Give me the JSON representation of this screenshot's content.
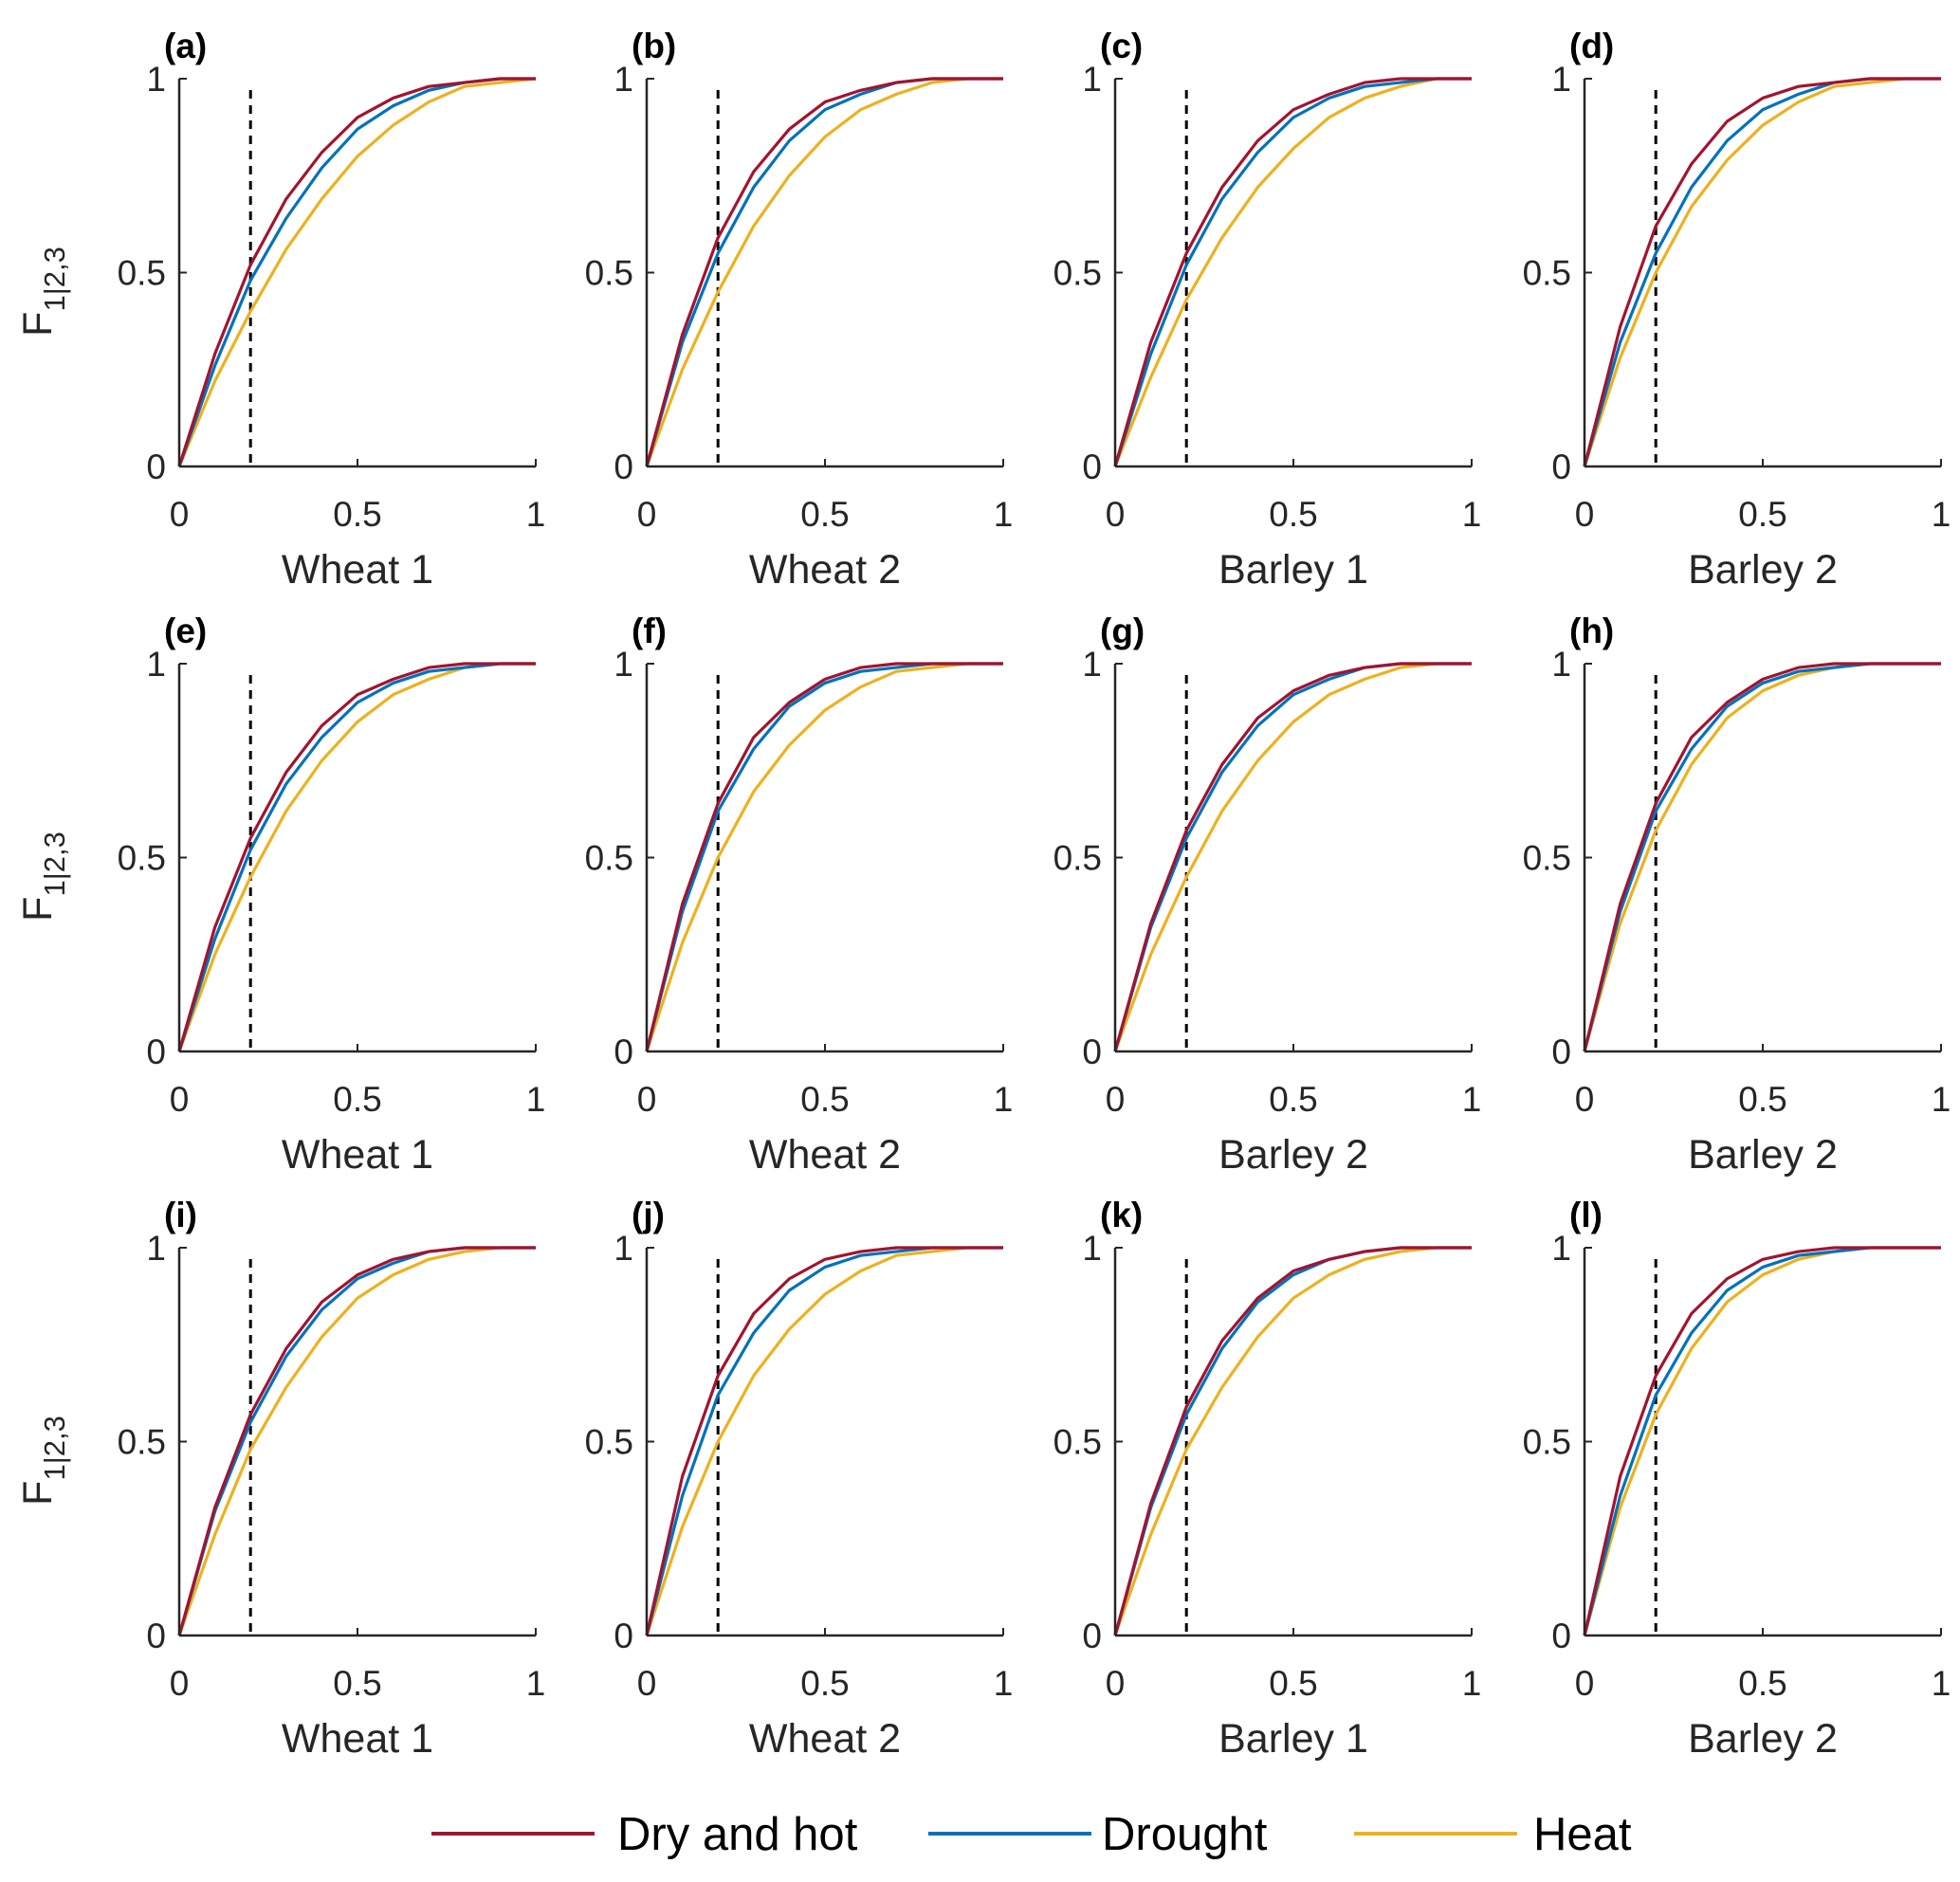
{
  "chart_data": [
    {
      "type": "line",
      "panel_label": "(a)",
      "xlabel": "Wheat 1",
      "ylabel": "F",
      "ylabel_sub": "1|2,3",
      "x": [
        0,
        0.1,
        0.2,
        0.3,
        0.4,
        0.5,
        0.6,
        0.7,
        0.8,
        0.9,
        1
      ],
      "series": [
        {
          "name": "Dry and hot",
          "color": "#a2142f",
          "values": [
            0,
            0.29,
            0.52,
            0.69,
            0.81,
            0.9,
            0.95,
            0.98,
            0.99,
            1,
            1
          ]
        },
        {
          "name": "Drought",
          "color": "#0072bd",
          "values": [
            0,
            0.26,
            0.48,
            0.64,
            0.77,
            0.87,
            0.93,
            0.97,
            0.99,
            1,
            1
          ]
        },
        {
          "name": "Heat",
          "color": "#edb120",
          "values": [
            0,
            0.22,
            0.4,
            0.56,
            0.69,
            0.8,
            0.88,
            0.94,
            0.98,
            0.99,
            1
          ]
        }
      ],
      "xlim": [
        0,
        1
      ],
      "ylim": [
        0,
        1
      ],
      "xticks": [
        0,
        0.5,
        1
      ],
      "yticks": [
        0,
        0.5,
        1
      ],
      "vline": 0.2
    },
    {
      "type": "line",
      "panel_label": "(b)",
      "xlabel": "Wheat 2",
      "x": [
        0,
        0.1,
        0.2,
        0.3,
        0.4,
        0.5,
        0.6,
        0.7,
        0.8,
        0.9,
        1
      ],
      "series": [
        {
          "name": "Dry and hot",
          "color": "#a2142f",
          "values": [
            0,
            0.34,
            0.59,
            0.76,
            0.87,
            0.94,
            0.97,
            0.99,
            1,
            1,
            1
          ]
        },
        {
          "name": "Drought",
          "color": "#0072bd",
          "values": [
            0,
            0.32,
            0.55,
            0.72,
            0.84,
            0.92,
            0.96,
            0.99,
            1,
            1,
            1
          ]
        },
        {
          "name": "Heat",
          "color": "#edb120",
          "values": [
            0,
            0.25,
            0.45,
            0.62,
            0.75,
            0.85,
            0.92,
            0.96,
            0.99,
            1,
            1
          ]
        }
      ],
      "xlim": [
        0,
        1
      ],
      "ylim": [
        0,
        1
      ],
      "xticks": [
        0,
        0.5,
        1
      ],
      "yticks": [
        0,
        0.5,
        1
      ],
      "vline": 0.2
    },
    {
      "type": "line",
      "panel_label": "(c)",
      "xlabel": "Barley 1",
      "x": [
        0,
        0.1,
        0.2,
        0.3,
        0.4,
        0.5,
        0.6,
        0.7,
        0.8,
        0.9,
        1
      ],
      "series": [
        {
          "name": "Dry and hot",
          "color": "#a2142f",
          "values": [
            0,
            0.32,
            0.55,
            0.72,
            0.84,
            0.92,
            0.96,
            0.99,
            1,
            1,
            1
          ]
        },
        {
          "name": "Drought",
          "color": "#0072bd",
          "values": [
            0,
            0.29,
            0.52,
            0.69,
            0.81,
            0.9,
            0.95,
            0.98,
            0.99,
            1,
            1
          ]
        },
        {
          "name": "Heat",
          "color": "#edb120",
          "values": [
            0,
            0.23,
            0.43,
            0.59,
            0.72,
            0.82,
            0.9,
            0.95,
            0.98,
            1,
            1
          ]
        }
      ],
      "xlim": [
        0,
        1
      ],
      "ylim": [
        0,
        1
      ],
      "xticks": [
        0,
        0.5,
        1
      ],
      "yticks": [
        0,
        0.5,
        1
      ],
      "vline": 0.2
    },
    {
      "type": "line",
      "panel_label": "(d)",
      "xlabel": "Barley 2",
      "x": [
        0,
        0.1,
        0.2,
        0.3,
        0.4,
        0.5,
        0.6,
        0.7,
        0.8,
        0.9,
        1
      ],
      "series": [
        {
          "name": "Dry and hot",
          "color": "#a2142f",
          "values": [
            0,
            0.36,
            0.62,
            0.78,
            0.89,
            0.95,
            0.98,
            0.99,
            1,
            1,
            1
          ]
        },
        {
          "name": "Drought",
          "color": "#0072bd",
          "values": [
            0,
            0.32,
            0.55,
            0.72,
            0.84,
            0.92,
            0.96,
            0.99,
            1,
            1,
            1
          ]
        },
        {
          "name": "Heat",
          "color": "#edb120",
          "values": [
            0,
            0.28,
            0.5,
            0.67,
            0.79,
            0.88,
            0.94,
            0.98,
            0.99,
            1,
            1
          ]
        }
      ],
      "xlim": [
        0,
        1
      ],
      "ylim": [
        0,
        1
      ],
      "xticks": [
        0,
        0.5,
        1
      ],
      "yticks": [
        0,
        0.5,
        1
      ],
      "vline": 0.2
    },
    {
      "type": "line",
      "panel_label": "(e)",
      "xlabel": "Wheat 1",
      "ylabel": "F",
      "ylabel_sub": "1|2,3",
      "x": [
        0,
        0.1,
        0.2,
        0.3,
        0.4,
        0.5,
        0.6,
        0.7,
        0.8,
        0.9,
        1
      ],
      "series": [
        {
          "name": "Dry and hot",
          "color": "#a2142f",
          "values": [
            0,
            0.32,
            0.55,
            0.72,
            0.84,
            0.92,
            0.96,
            0.99,
            1,
            1,
            1
          ]
        },
        {
          "name": "Drought",
          "color": "#0072bd",
          "values": [
            0,
            0.29,
            0.52,
            0.69,
            0.81,
            0.9,
            0.95,
            0.98,
            0.99,
            1,
            1
          ]
        },
        {
          "name": "Heat",
          "color": "#edb120",
          "values": [
            0,
            0.25,
            0.45,
            0.62,
            0.75,
            0.85,
            0.92,
            0.96,
            0.99,
            1,
            1
          ]
        }
      ],
      "xlim": [
        0,
        1
      ],
      "ylim": [
        0,
        1
      ],
      "xticks": [
        0,
        0.5,
        1
      ],
      "yticks": [
        0,
        0.5,
        1
      ],
      "vline": 0.2
    },
    {
      "type": "line",
      "panel_label": "(f)",
      "xlabel": "Wheat 2",
      "x": [
        0,
        0.1,
        0.2,
        0.3,
        0.4,
        0.5,
        0.6,
        0.7,
        0.8,
        0.9,
        1
      ],
      "series": [
        {
          "name": "Dry and hot",
          "color": "#a2142f",
          "values": [
            0,
            0.38,
            0.64,
            0.81,
            0.9,
            0.96,
            0.99,
            1,
            1,
            1,
            1
          ]
        },
        {
          "name": "Drought",
          "color": "#0072bd",
          "values": [
            0,
            0.36,
            0.62,
            0.78,
            0.89,
            0.95,
            0.98,
            0.99,
            1,
            1,
            1
          ]
        },
        {
          "name": "Heat",
          "color": "#edb120",
          "values": [
            0,
            0.28,
            0.5,
            0.67,
            0.79,
            0.88,
            0.94,
            0.98,
            0.99,
            1,
            1
          ]
        }
      ],
      "xlim": [
        0,
        1
      ],
      "ylim": [
        0,
        1
      ],
      "xticks": [
        0,
        0.5,
        1
      ],
      "yticks": [
        0,
        0.5,
        1
      ],
      "vline": 0.2
    },
    {
      "type": "line",
      "panel_label": "(g)",
      "xlabel": "Barley 2",
      "x": [
        0,
        0.1,
        0.2,
        0.3,
        0.4,
        0.5,
        0.6,
        0.7,
        0.8,
        0.9,
        1
      ],
      "series": [
        {
          "name": "Dry and hot",
          "color": "#a2142f",
          "values": [
            0,
            0.33,
            0.57,
            0.74,
            0.86,
            0.93,
            0.97,
            0.99,
            1,
            1,
            1
          ]
        },
        {
          "name": "Drought",
          "color": "#0072bd",
          "values": [
            0,
            0.32,
            0.55,
            0.72,
            0.84,
            0.92,
            0.96,
            0.99,
            1,
            1,
            1
          ]
        },
        {
          "name": "Heat",
          "color": "#edb120",
          "values": [
            0,
            0.25,
            0.45,
            0.62,
            0.75,
            0.85,
            0.92,
            0.96,
            0.99,
            1,
            1
          ]
        }
      ],
      "xlim": [
        0,
        1
      ],
      "ylim": [
        0,
        1
      ],
      "xticks": [
        0,
        0.5,
        1
      ],
      "yticks": [
        0,
        0.5,
        1
      ],
      "vline": 0.2
    },
    {
      "type": "line",
      "panel_label": "(h)",
      "xlabel": "Barley 2",
      "x": [
        0,
        0.1,
        0.2,
        0.3,
        0.4,
        0.5,
        0.6,
        0.7,
        0.8,
        0.9,
        1
      ],
      "series": [
        {
          "name": "Dry and hot",
          "color": "#a2142f",
          "values": [
            0,
            0.38,
            0.64,
            0.81,
            0.9,
            0.96,
            0.99,
            1,
            1,
            1,
            1
          ]
        },
        {
          "name": "Drought",
          "color": "#0072bd",
          "values": [
            0,
            0.36,
            0.62,
            0.78,
            0.89,
            0.95,
            0.98,
            0.99,
            1,
            1,
            1
          ]
        },
        {
          "name": "Heat",
          "color": "#edb120",
          "values": [
            0,
            0.33,
            0.57,
            0.74,
            0.86,
            0.93,
            0.97,
            0.99,
            1,
            1,
            1
          ]
        }
      ],
      "xlim": [
        0,
        1
      ],
      "ylim": [
        0,
        1
      ],
      "xticks": [
        0,
        0.5,
        1
      ],
      "yticks": [
        0,
        0.5,
        1
      ],
      "vline": 0.2
    },
    {
      "type": "line",
      "panel_label": "(i)",
      "xlabel": "Wheat 1",
      "ylabel": "F",
      "ylabel_sub": "1|2,3",
      "x": [
        0,
        0.1,
        0.2,
        0.3,
        0.4,
        0.5,
        0.6,
        0.7,
        0.8,
        0.9,
        1
      ],
      "series": [
        {
          "name": "Dry and hot",
          "color": "#a2142f",
          "values": [
            0,
            0.33,
            0.57,
            0.74,
            0.86,
            0.93,
            0.97,
            0.99,
            1,
            1,
            1
          ]
        },
        {
          "name": "Drought",
          "color": "#0072bd",
          "values": [
            0,
            0.32,
            0.55,
            0.72,
            0.84,
            0.92,
            0.96,
            0.99,
            1,
            1,
            1
          ]
        },
        {
          "name": "Heat",
          "color": "#edb120",
          "values": [
            0,
            0.26,
            0.48,
            0.64,
            0.77,
            0.87,
            0.93,
            0.97,
            0.99,
            1,
            1
          ]
        }
      ],
      "xlim": [
        0,
        1
      ],
      "ylim": [
        0,
        1
      ],
      "xticks": [
        0,
        0.5,
        1
      ],
      "yticks": [
        0,
        0.5,
        1
      ],
      "vline": 0.2
    },
    {
      "type": "line",
      "panel_label": "(j)",
      "xlabel": "Wheat 2",
      "x": [
        0,
        0.1,
        0.2,
        0.3,
        0.4,
        0.5,
        0.6,
        0.7,
        0.8,
        0.9,
        1
      ],
      "series": [
        {
          "name": "Dry and hot",
          "color": "#a2142f",
          "values": [
            0,
            0.41,
            0.67,
            0.83,
            0.92,
            0.97,
            0.99,
            1,
            1,
            1,
            1
          ]
        },
        {
          "name": "Drought",
          "color": "#0072bd",
          "values": [
            0,
            0.36,
            0.62,
            0.78,
            0.89,
            0.95,
            0.98,
            0.99,
            1,
            1,
            1
          ]
        },
        {
          "name": "Heat",
          "color": "#edb120",
          "values": [
            0,
            0.28,
            0.5,
            0.67,
            0.79,
            0.88,
            0.94,
            0.98,
            0.99,
            1,
            1
          ]
        }
      ],
      "xlim": [
        0,
        1
      ],
      "ylim": [
        0,
        1
      ],
      "xticks": [
        0,
        0.5,
        1
      ],
      "yticks": [
        0,
        0.5,
        1
      ],
      "vline": 0.2
    },
    {
      "type": "line",
      "panel_label": "(k)",
      "xlabel": "Barley 1",
      "x": [
        0,
        0.1,
        0.2,
        0.3,
        0.4,
        0.5,
        0.6,
        0.7,
        0.8,
        0.9,
        1
      ],
      "series": [
        {
          "name": "Dry and hot",
          "color": "#a2142f",
          "values": [
            0,
            0.34,
            0.59,
            0.76,
            0.87,
            0.94,
            0.97,
            0.99,
            1,
            1,
            1
          ]
        },
        {
          "name": "Drought",
          "color": "#0072bd",
          "values": [
            0,
            0.33,
            0.57,
            0.74,
            0.86,
            0.93,
            0.97,
            0.99,
            1,
            1,
            1
          ]
        },
        {
          "name": "Heat",
          "color": "#edb120",
          "values": [
            0,
            0.26,
            0.48,
            0.64,
            0.77,
            0.87,
            0.93,
            0.97,
            0.99,
            1,
            1
          ]
        }
      ],
      "xlim": [
        0,
        1
      ],
      "ylim": [
        0,
        1
      ],
      "xticks": [
        0,
        0.5,
        1
      ],
      "yticks": [
        0,
        0.5,
        1
      ],
      "vline": 0.2
    },
    {
      "type": "line",
      "panel_label": "(l)",
      "xlabel": "Barley 2",
      "x": [
        0,
        0.1,
        0.2,
        0.3,
        0.4,
        0.5,
        0.6,
        0.7,
        0.8,
        0.9,
        1
      ],
      "series": [
        {
          "name": "Dry and hot",
          "color": "#a2142f",
          "values": [
            0,
            0.41,
            0.67,
            0.83,
            0.92,
            0.97,
            0.99,
            1,
            1,
            1,
            1
          ]
        },
        {
          "name": "Drought",
          "color": "#0072bd",
          "values": [
            0,
            0.36,
            0.62,
            0.78,
            0.89,
            0.95,
            0.98,
            0.99,
            1,
            1,
            1
          ]
        },
        {
          "name": "Heat",
          "color": "#edb120",
          "values": [
            0,
            0.33,
            0.57,
            0.74,
            0.86,
            0.93,
            0.97,
            0.99,
            1,
            1,
            1
          ]
        }
      ],
      "xlim": [
        0,
        1
      ],
      "ylim": [
        0,
        1
      ],
      "xticks": [
        0,
        0.5,
        1
      ],
      "yticks": [
        0,
        0.5,
        1
      ],
      "vline": 0.2
    }
  ]
}
